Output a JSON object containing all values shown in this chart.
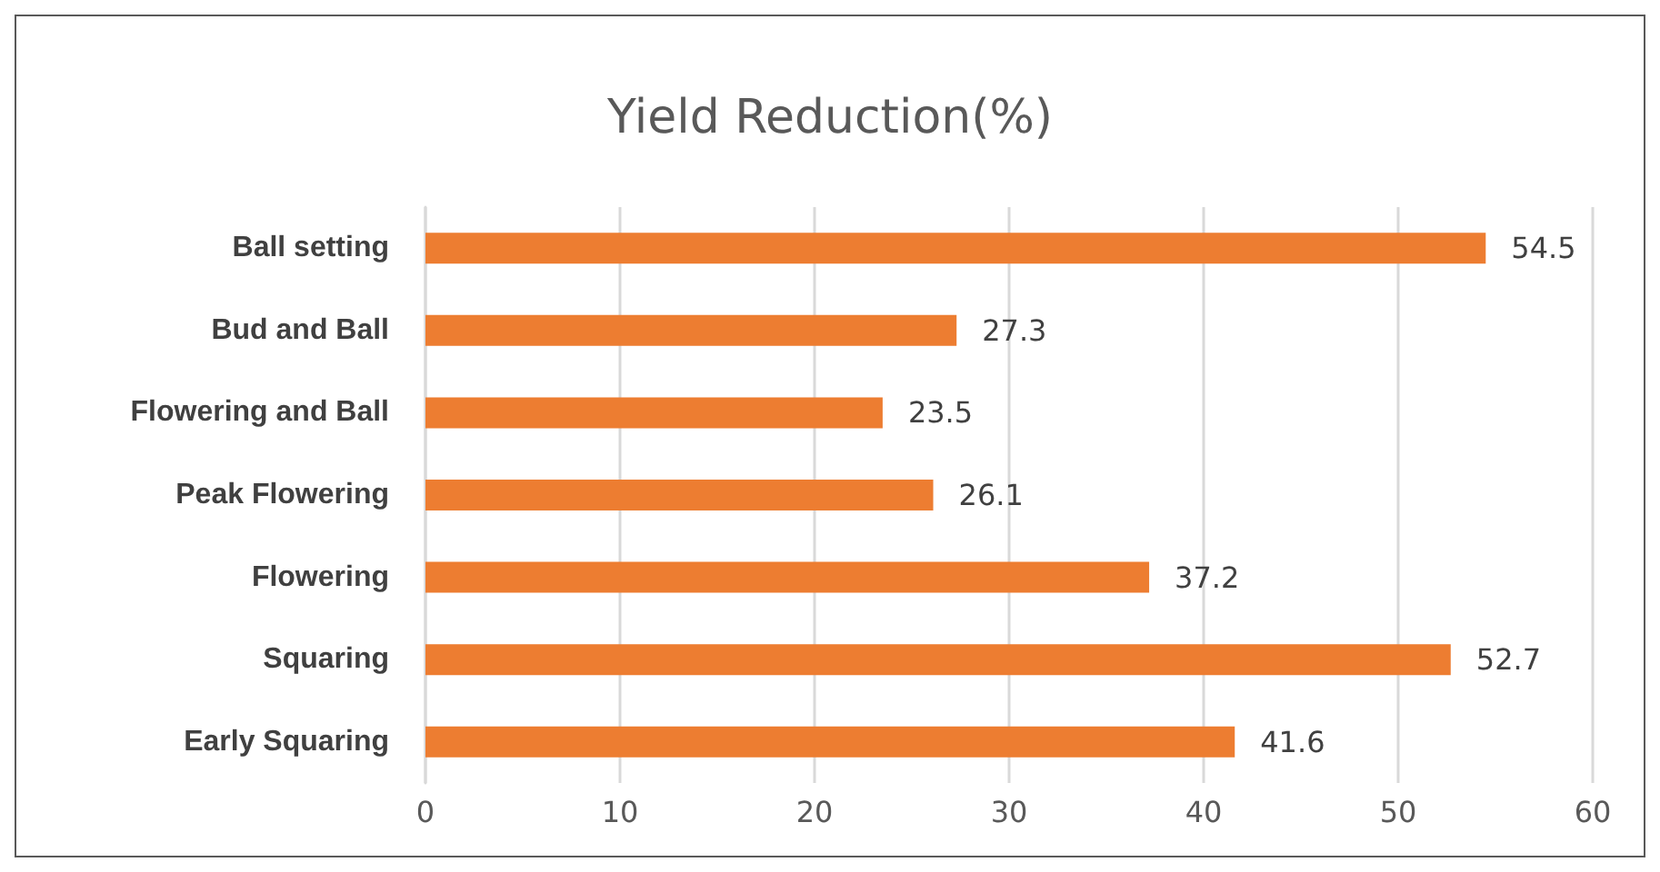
{
  "chart_data": {
    "type": "bar",
    "orientation": "horizontal",
    "title": "Yield Reduction(%)",
    "categories": [
      "Ball setting",
      "Bud and Ball",
      "Flowering and Ball",
      "Peak Flowering",
      "Flowering",
      "Squaring",
      "Early Squaring"
    ],
    "values": [
      54.5,
      27.3,
      23.5,
      26.1,
      37.2,
      52.7,
      41.6
    ],
    "color": "#ed7d31",
    "xlim": [
      0,
      60
    ],
    "xticks": [
      0,
      10,
      20,
      30,
      40,
      50,
      60
    ],
    "grid": "x",
    "data_labels": true
  }
}
